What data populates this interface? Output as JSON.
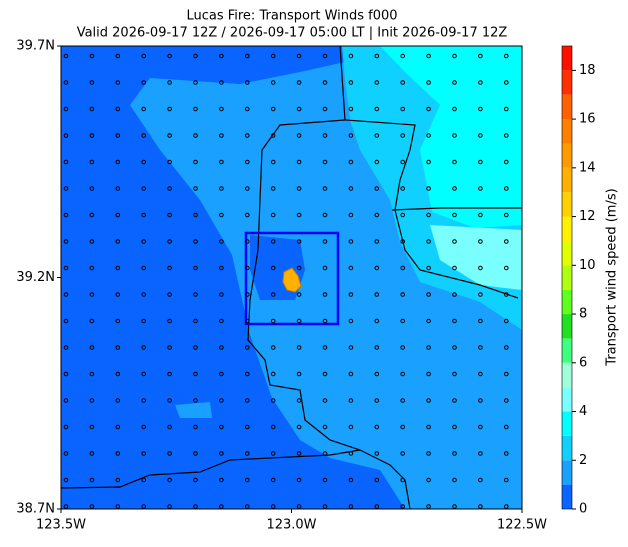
{
  "title": "Lucas Fire: Transport Winds f000",
  "subtitle": "Valid 2026-09-17 12Z / 2026-09-17 05:00 LT | Init 2026-09-17 12Z",
  "map": {
    "xlim": [
      -123.5,
      -122.5
    ],
    "ylim": [
      38.7,
      39.7
    ],
    "xticks": [
      {
        "value": -123.5,
        "label": "123.5W"
      },
      {
        "value": -123.0,
        "label": "123.0W"
      },
      {
        "value": -122.5,
        "label": "122.5W"
      }
    ],
    "yticks": [
      {
        "value": 38.7,
        "label": "38.7N"
      },
      {
        "value": 39.2,
        "label": "39.2N"
      },
      {
        "value": 39.7,
        "label": "39.7N"
      }
    ]
  },
  "colorbar": {
    "label": "Transport wind speed (m/s)",
    "clim": [
      0,
      19
    ],
    "levels": [
      0,
      1,
      2,
      3,
      4,
      5,
      6,
      7,
      8,
      9,
      10,
      11,
      12,
      13,
      14,
      15,
      16,
      17,
      18,
      19
    ],
    "colors": [
      "#0a64ff",
      "#1aa0ff",
      "#10d0ff",
      "#00ffff",
      "#7affff",
      "#a0ffd8",
      "#40ff80",
      "#20e020",
      "#60ff20",
      "#b0ff10",
      "#e0ff00",
      "#fff000",
      "#ffd000",
      "#ffb000",
      "#ff9a00",
      "#ff8000",
      "#ff6000",
      "#ff3000",
      "#ff1000"
    ],
    "ticks": [
      0,
      2,
      4,
      6,
      8,
      10,
      12,
      14,
      16,
      18
    ]
  }
}
